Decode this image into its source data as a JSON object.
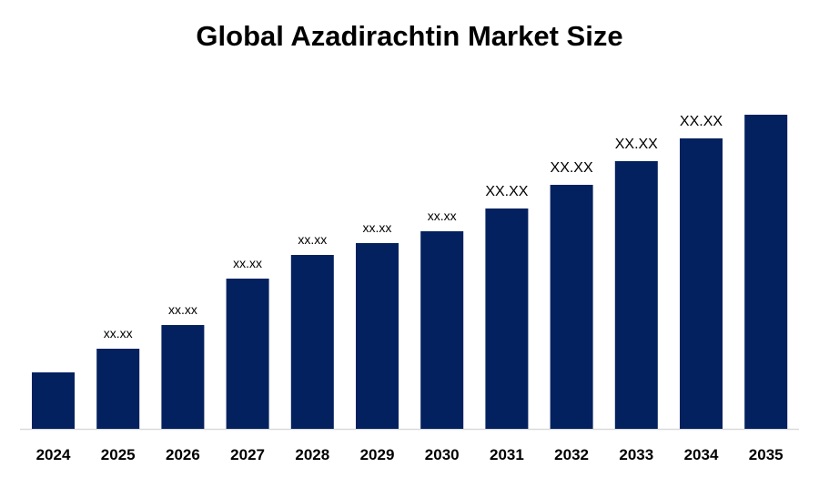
{
  "chart_data": {
    "type": "bar",
    "title": "Global Azadirachtin Market Size",
    "categories": [
      "2024",
      "2025",
      "2026",
      "2027",
      "2028",
      "2029",
      "2030",
      "2031",
      "2032",
      "2033",
      "2034",
      "2035"
    ],
    "values": [
      62,
      88,
      114,
      165,
      191,
      204,
      217,
      242,
      268,
      294,
      319,
      345
    ],
    "value_units": "relative (no axis printed)",
    "data_labels": [
      "",
      "xx.xx",
      "xx.xx",
      "xx.xx",
      "xx.xx",
      "xx.xx",
      "xx.xx",
      "XX.XX",
      "XX.XX",
      "XX.XX",
      "XX.XX",
      ""
    ],
    "xlabel": "",
    "ylabel": "",
    "grid": false,
    "legend": "none",
    "colors": {
      "bar": "#03215F",
      "axis": "#D9D9D9",
      "text": "#000000"
    }
  }
}
